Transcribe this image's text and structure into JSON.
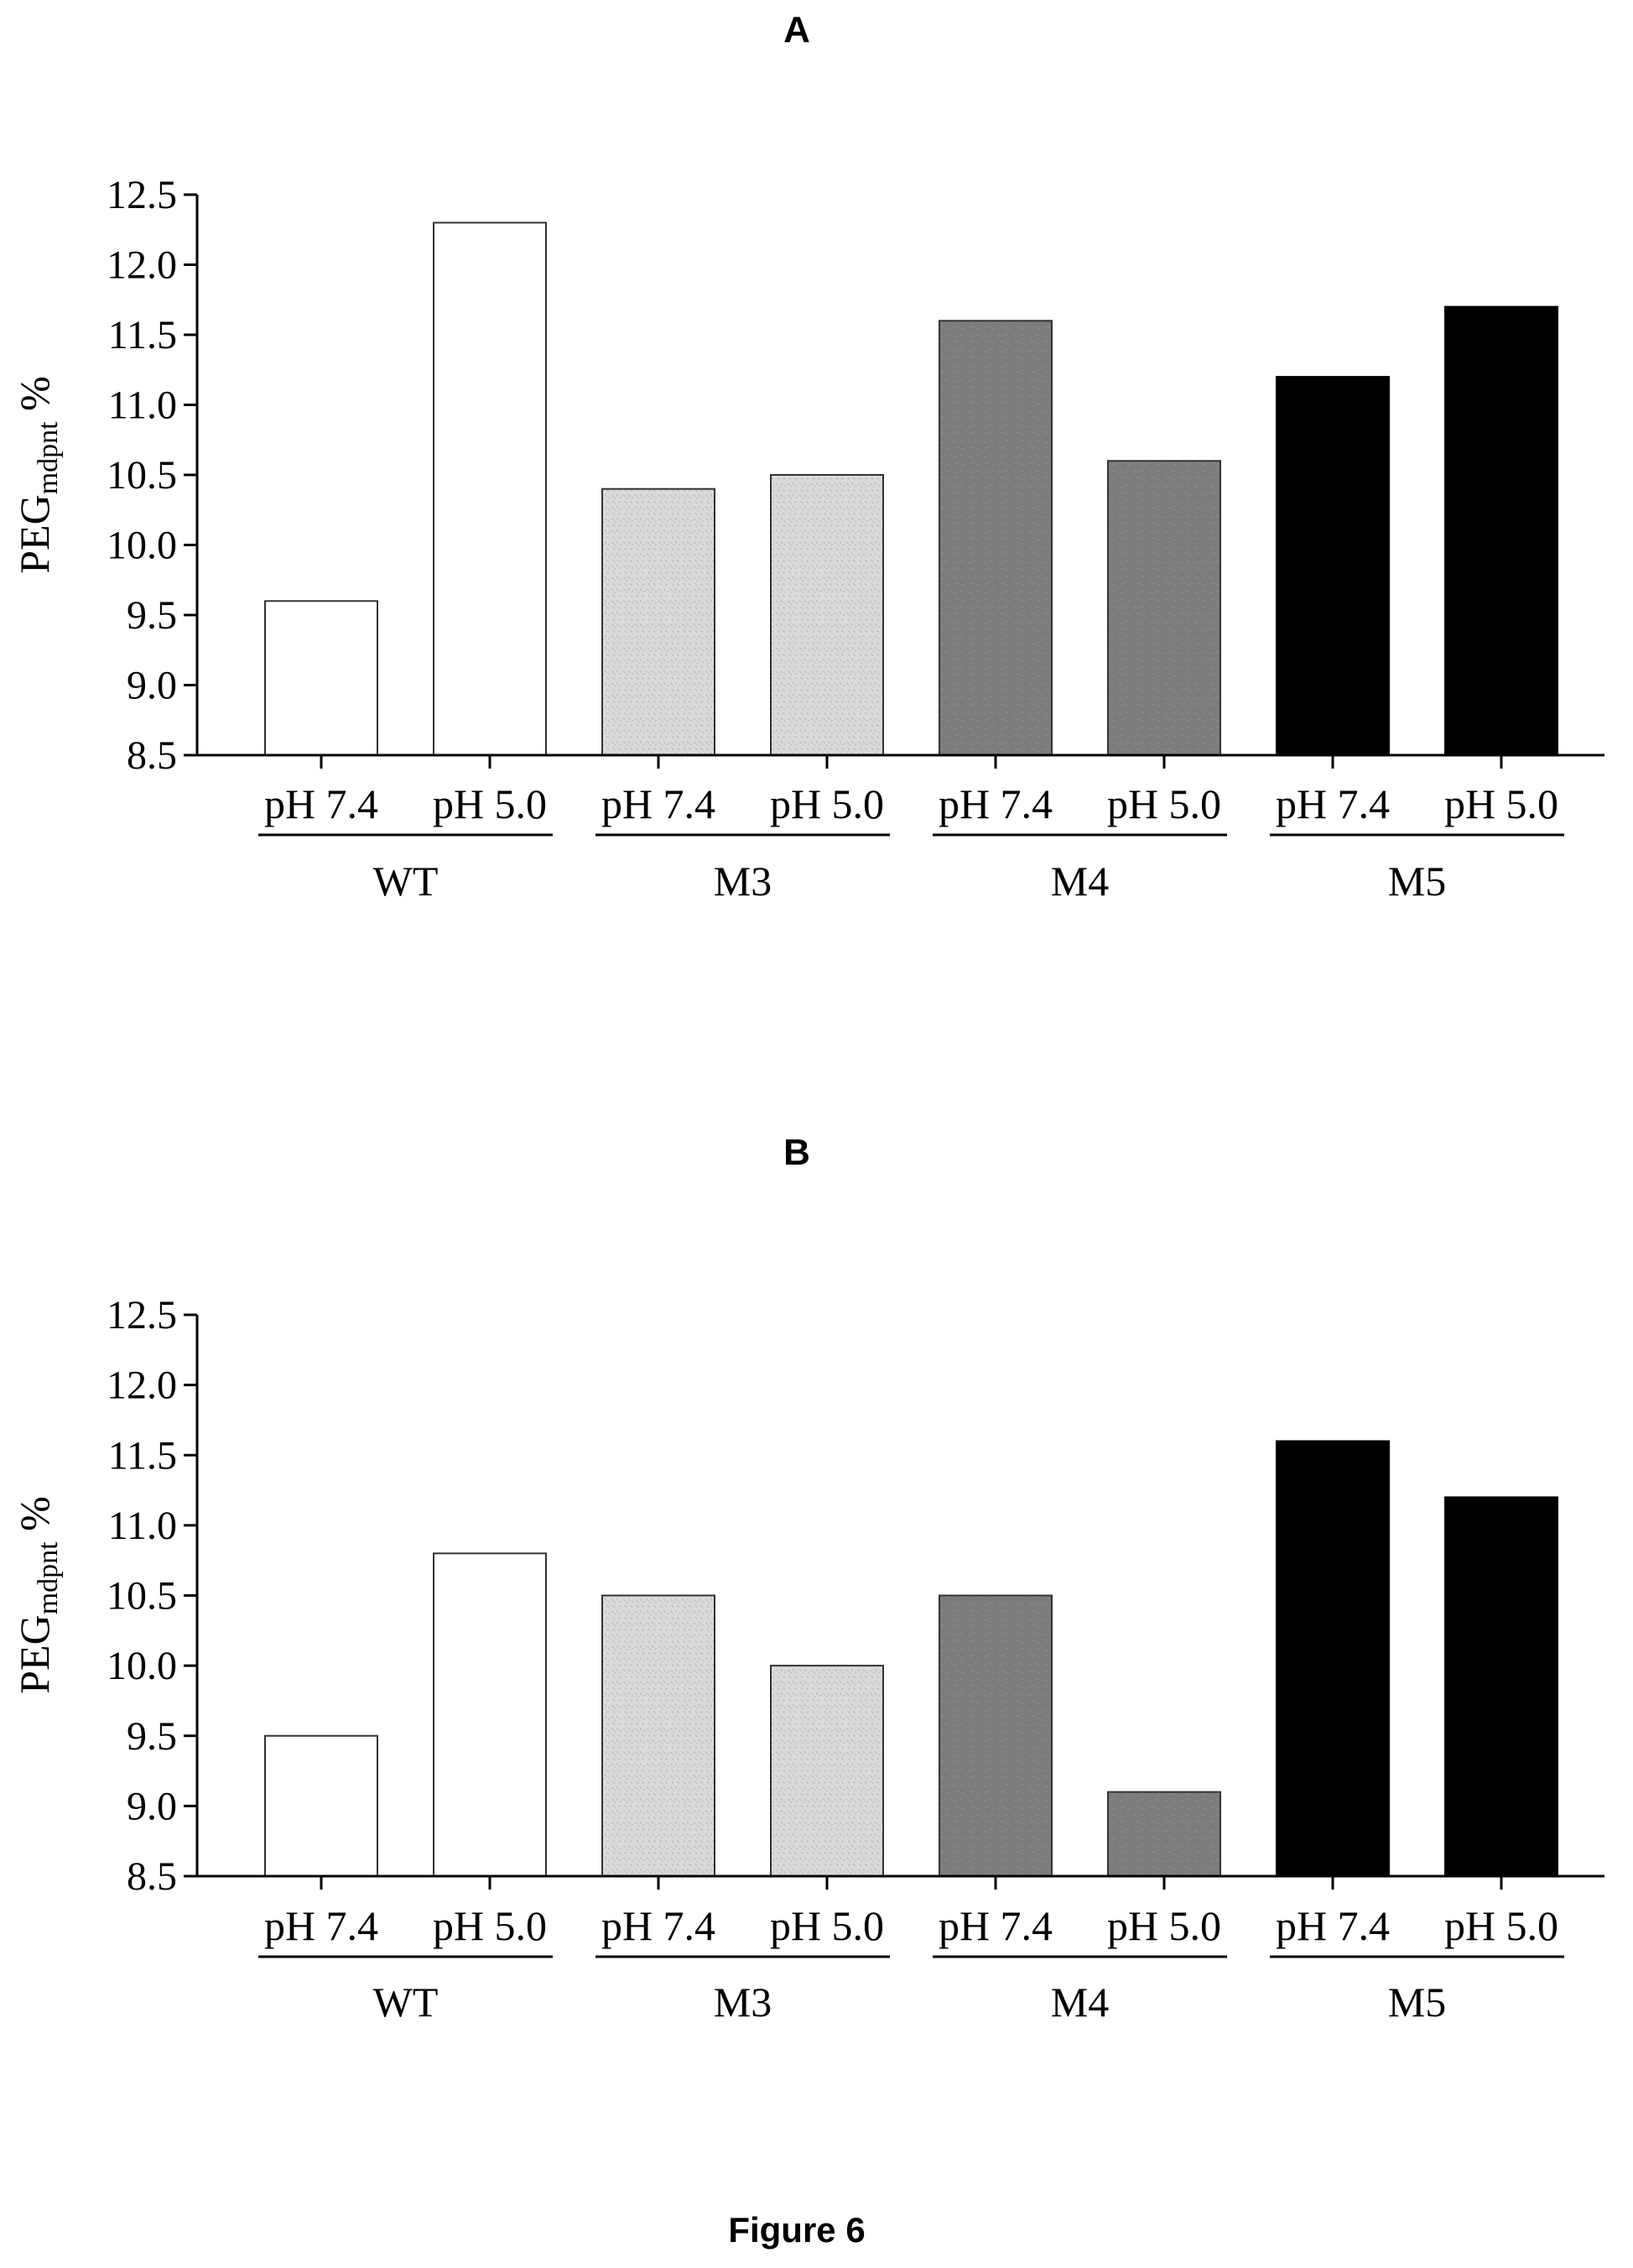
{
  "figure_caption": "Figure 6",
  "chart_data": [
    {
      "type": "bar",
      "title": "A",
      "ylabel": {
        "main": "PEG",
        "subscript": "mdpnt",
        "suffix": " %"
      },
      "ylim": [
        8.5,
        12.5
      ],
      "yticks": [
        "8.5",
        "9.0",
        "9.5",
        "10.0",
        "10.5",
        "11.0",
        "11.5",
        "12.0",
        "12.5"
      ],
      "categories": [
        "pH 7.4",
        "pH 5.0",
        "pH 7.4",
        "pH 5.0",
        "pH 7.4",
        "pH 5.0",
        "pH 7.4",
        "pH 5.0"
      ],
      "groups": [
        "WT",
        "M3",
        "M4",
        "M5"
      ],
      "values": [
        9.6,
        12.3,
        10.4,
        10.5,
        11.6,
        10.6,
        11.2,
        11.7
      ],
      "group_colors": [
        "#ffffff",
        "#d9d9d9",
        "#7f7f7f",
        "#000000"
      ],
      "grid": false,
      "legend": "none"
    },
    {
      "type": "bar",
      "title": "B",
      "ylabel": {
        "main": "PEG",
        "subscript": "mdpnt",
        "suffix": " %"
      },
      "ylim": [
        8.5,
        12.5
      ],
      "yticks": [
        "8.5",
        "9.0",
        "9.5",
        "10.0",
        "10.5",
        "11.0",
        "11.5",
        "12.0",
        "12.5"
      ],
      "categories": [
        "pH 7.4",
        "pH 5.0",
        "pH 7.4",
        "pH 5.0",
        "pH 7.4",
        "pH 5.0",
        "pH 7.4",
        "pH 5.0"
      ],
      "groups": [
        "WT",
        "M3",
        "M4",
        "M5"
      ],
      "values": [
        9.5,
        10.8,
        10.5,
        10.0,
        10.5,
        9.1,
        11.6,
        11.2
      ],
      "group_colors": [
        "#ffffff",
        "#d9d9d9",
        "#7f7f7f",
        "#000000"
      ],
      "grid": false,
      "legend": "none"
    }
  ]
}
